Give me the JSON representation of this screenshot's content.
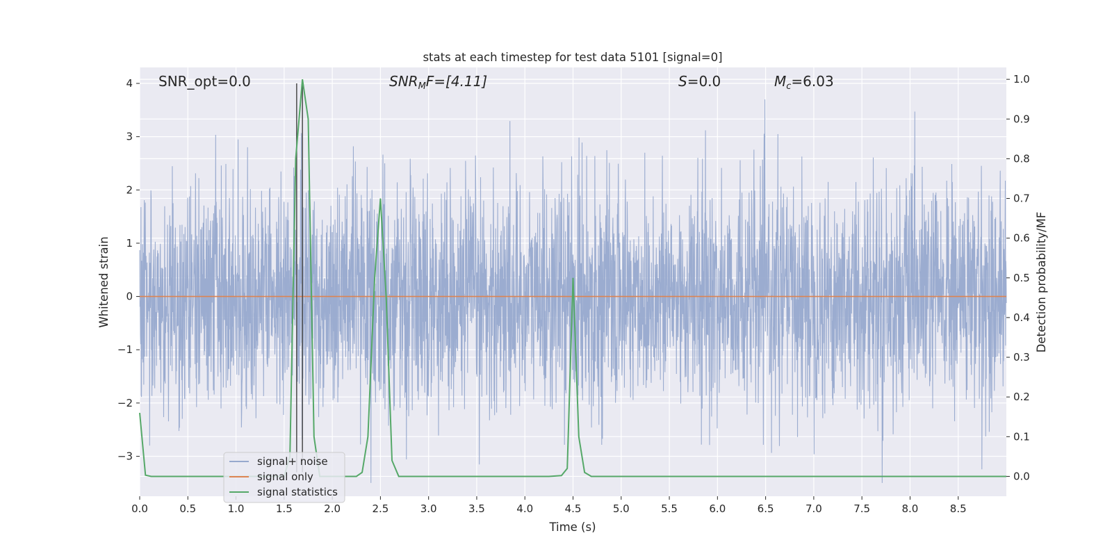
{
  "chart_data": {
    "type": "line",
    "title": "stats at each timestep for test data 5101 [signal=0]",
    "xlabel": "Time (s)",
    "ylabel_left": "Whitened strain",
    "ylabel_right": "Detection probability/MF",
    "xlim": [
      0.0,
      9.0
    ],
    "ylim_left": [
      -3.75,
      4.3
    ],
    "ylim_right": [
      -0.05,
      1.03
    ],
    "x_ticks": [
      "0.0",
      "0.5",
      "1.0",
      "1.5",
      "2.0",
      "2.5",
      "3.0",
      "3.5",
      "4.0",
      "4.5",
      "5.0",
      "5.5",
      "6.0",
      "6.5",
      "7.0",
      "7.5",
      "8.0",
      "8.5"
    ],
    "y_ticks_left": [
      "4",
      "3",
      "2",
      "1",
      "0",
      "−1",
      "−2",
      "−3"
    ],
    "y_ticks_right": [
      "1.0",
      "0.9",
      "0.8",
      "0.7",
      "0.6",
      "0.5",
      "0.4",
      "0.3",
      "0.2",
      "0.1",
      "0.0"
    ],
    "grid": true,
    "annotations": {
      "snr_opt": "SNR_opt=0.0",
      "snr_mf_base": "SNR",
      "snr_mf_sub": "M",
      "snr_mf_rest": "F=[4.11]",
      "s_base": "S",
      "s_rest": "=0.0",
      "mc_base": "M",
      "mc_sub": "c",
      "mc_rest": "=6.03"
    },
    "vlines": [
      1.63,
      1.69
    ],
    "series": [
      {
        "name": "signal+ noise",
        "axis": "left",
        "color": "#97a9cd",
        "note_values": "dense noise, amplitude about 1.8 sigma-band with peaks near 3.6"
      },
      {
        "name": "signal only",
        "axis": "left",
        "color": "#dd8452",
        "x": [
          0.0,
          9.0
        ],
        "y": [
          0.0,
          0.0
        ]
      },
      {
        "name": "signal statistics",
        "axis": "right",
        "color": "#55a868",
        "x": [
          0.0,
          0.06,
          0.12,
          0.2,
          1.5,
          1.56,
          1.62,
          1.69,
          1.75,
          1.81,
          1.87,
          2.25,
          2.31,
          2.37,
          2.44,
          2.5,
          2.56,
          2.62,
          2.69,
          4.25,
          4.38,
          4.44,
          4.5,
          4.56,
          4.62,
          4.69,
          9.0
        ],
        "y": [
          0.16,
          0.003,
          0.0,
          0.0,
          0.0,
          0.05,
          0.8,
          1.0,
          0.9,
          0.1,
          0.0,
          0.0,
          0.01,
          0.1,
          0.5,
          0.7,
          0.45,
          0.04,
          0.0,
          0.0,
          0.002,
          0.02,
          0.5,
          0.1,
          0.01,
          0.0,
          0.0
        ]
      }
    ],
    "legend": {
      "placement": "lower-left",
      "entries": [
        {
          "label": "signal+ noise",
          "color": "#97a9cd"
        },
        {
          "label": "signal only",
          "color": "#dd8452"
        },
        {
          "label": "signal statistics",
          "color": "#55a868"
        }
      ]
    },
    "colors": {
      "plot_background": "#eaeaf2",
      "grid": "#ffffff",
      "vline": "#4a4a4a"
    }
  }
}
